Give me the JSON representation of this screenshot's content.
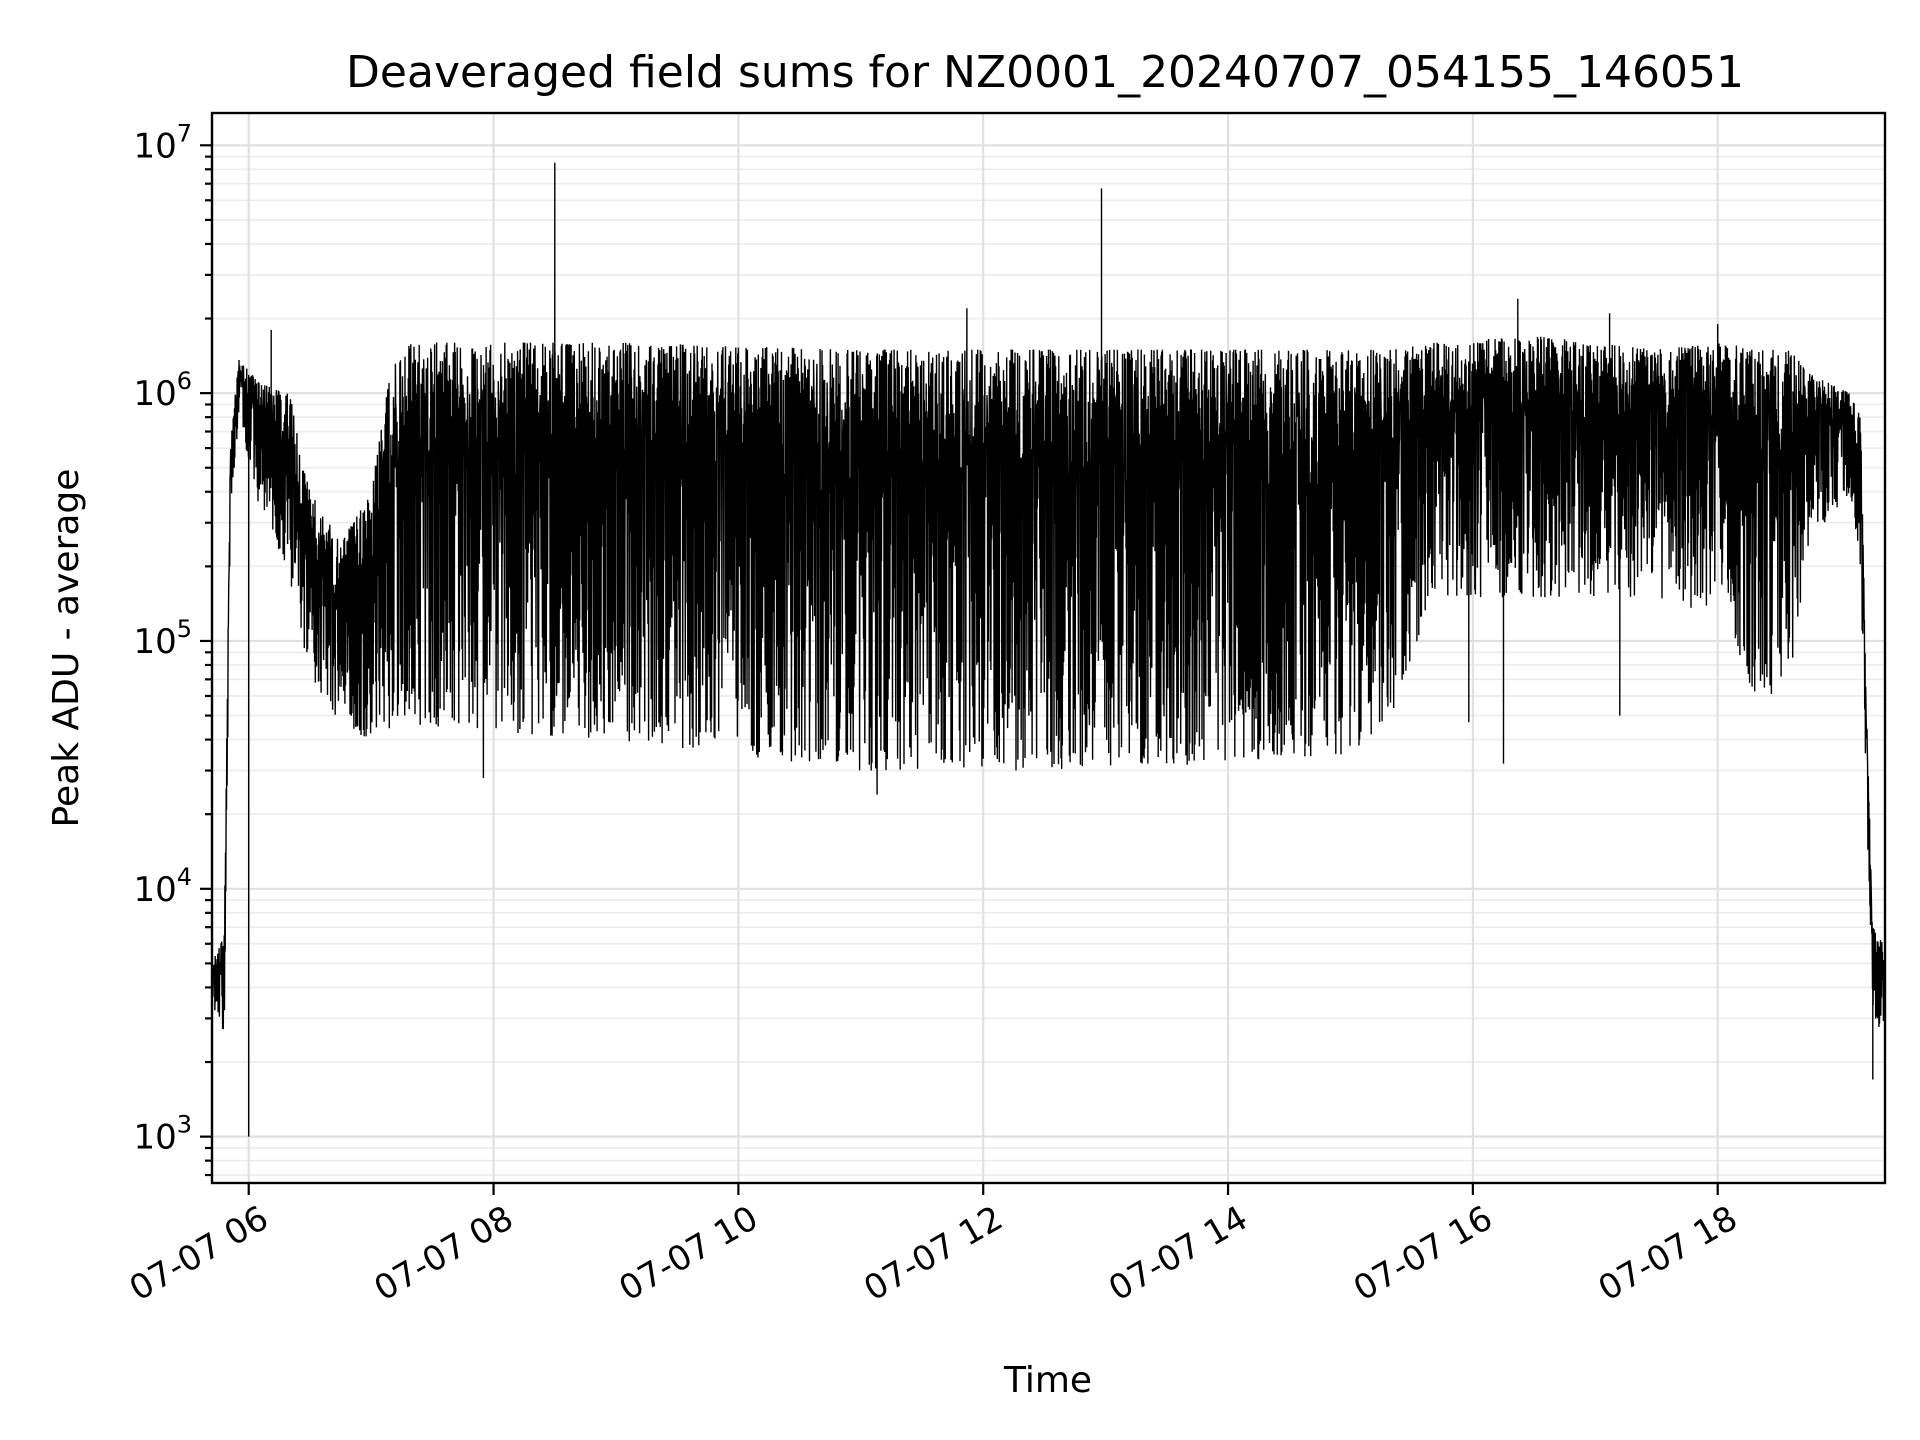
{
  "chart_data": {
    "type": "line",
    "title": "Deaveraged field sums for NZ0001_20240707_054155_146051",
    "xlabel": "Time",
    "ylabel": "Peak ADU - average",
    "yscale": "log",
    "ylim": [
      650,
      13500000
    ],
    "xlim": [
      "2024-07-07 05:42",
      "2024-07-07 19:22"
    ],
    "grid": true,
    "x_ticks": [
      {
        "value": "2024-07-07 06:00",
        "label": "07-07 06"
      },
      {
        "value": "2024-07-07 08:00",
        "label": "07-07 08"
      },
      {
        "value": "2024-07-07 10:00",
        "label": "07-07 10"
      },
      {
        "value": "2024-07-07 12:00",
        "label": "07-07 12"
      },
      {
        "value": "2024-07-07 14:00",
        "label": "07-07 14"
      },
      {
        "value": "2024-07-07 16:00",
        "label": "07-07 16"
      },
      {
        "value": "2024-07-07 18:00",
        "label": "07-07 18"
      }
    ],
    "y_ticks": [
      {
        "value": 1000,
        "base": "10",
        "exp": "3"
      },
      {
        "value": 10000,
        "base": "10",
        "exp": "4"
      },
      {
        "value": 100000,
        "base": "10",
        "exp": "5"
      },
      {
        "value": 1000000,
        "base": "10",
        "exp": "6"
      },
      {
        "value": 10000000,
        "base": "10",
        "exp": "7"
      }
    ],
    "series_color": "#000000",
    "envelope": [
      {
        "t": "2024-07-07 05:42",
        "low": 3500,
        "high": 5000
      },
      {
        "t": "2024-07-07 05:48",
        "low": 2500,
        "high": 6500
      },
      {
        "t": "2024-07-07 05:51",
        "low": 300000,
        "high": 600000
      },
      {
        "t": "2024-07-07 05:55",
        "low": 800000,
        "high": 1400000
      },
      {
        "t": "2024-07-07 06:05",
        "low": 350000,
        "high": 1100000
      },
      {
        "t": "2024-07-07 06:20",
        "low": 180000,
        "high": 1000000
      },
      {
        "t": "2024-07-07 06:30",
        "low": 70000,
        "high": 400000
      },
      {
        "t": "2024-07-07 06:45",
        "low": 45000,
        "high": 250000
      },
      {
        "t": "2024-07-07 07:00",
        "low": 40000,
        "high": 400000
      },
      {
        "t": "2024-07-07 07:10",
        "low": 45000,
        "high": 1300000
      },
      {
        "t": "2024-07-07 07:20",
        "low": 45000,
        "high": 1600000
      },
      {
        "t": "2024-07-07 09:00",
        "low": 40000,
        "high": 1600000
      },
      {
        "t": "2024-07-07 11:00",
        "low": 30000,
        "high": 1500000
      },
      {
        "t": "2024-07-07 13:00",
        "low": 30000,
        "high": 1500000
      },
      {
        "t": "2024-07-07 15:00",
        "low": 35000,
        "high": 1500000
      },
      {
        "t": "2024-07-07 15:20",
        "low": 50000,
        "high": 1500000
      },
      {
        "t": "2024-07-07 15:40",
        "low": 150000,
        "high": 1600000
      },
      {
        "t": "2024-07-07 16:30",
        "low": 150000,
        "high": 1700000
      },
      {
        "t": "2024-07-07 17:30",
        "low": 150000,
        "high": 1500000
      },
      {
        "t": "2024-07-07 18:05",
        "low": 120000,
        "high": 1600000
      },
      {
        "t": "2024-07-07 18:15",
        "low": 60000,
        "high": 1500000
      },
      {
        "t": "2024-07-07 18:35",
        "low": 60000,
        "high": 1500000
      },
      {
        "t": "2024-07-07 18:45",
        "low": 250000,
        "high": 1200000
      },
      {
        "t": "2024-07-07 19:05",
        "low": 400000,
        "high": 1000000
      },
      {
        "t": "2024-07-07 19:10",
        "low": 200000,
        "high": 800000
      },
      {
        "t": "2024-07-07 19:13",
        "low": 20000,
        "high": 50000
      },
      {
        "t": "2024-07-07 19:16",
        "low": 2500,
        "high": 7000
      },
      {
        "t": "2024-07-07 19:22",
        "low": 3000,
        "high": 6000
      }
    ],
    "spikes": [
      {
        "t": "2024-07-07 06:11",
        "y": 1800000
      },
      {
        "t": "2024-07-07 08:30",
        "y": 8500000
      },
      {
        "t": "2024-07-07 11:52",
        "y": 2200000
      },
      {
        "t": "2024-07-07 12:58",
        "y": 6700000
      },
      {
        "t": "2024-07-07 16:22",
        "y": 2400000
      },
      {
        "t": "2024-07-07 17:07",
        "y": 2100000
      },
      {
        "t": "2024-07-07 18:00",
        "y": 1900000
      }
    ],
    "dips": [
      {
        "t": "2024-07-07 06:00",
        "y": 1000
      },
      {
        "t": "2024-07-07 07:55",
        "y": 28000
      },
      {
        "t": "2024-07-07 11:08",
        "y": 24000
      },
      {
        "t": "2024-07-07 15:58",
        "y": 47000
      },
      {
        "t": "2024-07-07 16:15",
        "y": 32000
      },
      {
        "t": "2024-07-07 17:12",
        "y": 50000
      },
      {
        "t": "2024-07-07 19:16",
        "y": 1700
      }
    ]
  }
}
